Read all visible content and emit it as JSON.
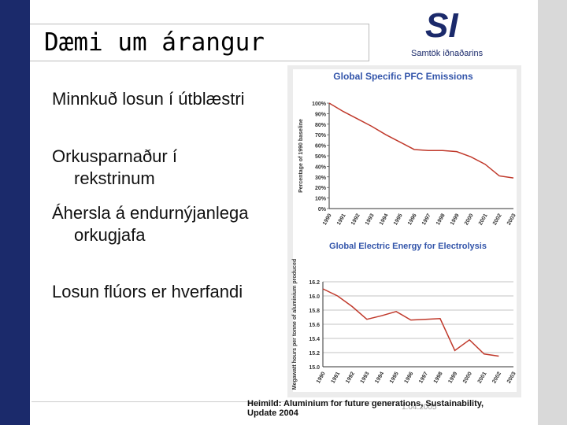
{
  "slide": {
    "title": "Dæmi um árangur",
    "logo": "SI",
    "logo_subtitle": "Samtök iðnaðarins",
    "bullets": [
      "Minnkuð losun í útblæstri",
      "Orkusparnaður í rekstrinum",
      "Áhersla á endurnýjanlega orkugjafa",
      "Losun flúors er hverfandi"
    ],
    "source": "Heimild: Aluminium for future generations, Sustainability, Update 2004",
    "date": "1.04.2005"
  },
  "chart_data": [
    {
      "type": "line",
      "title": "Global Specific PFC Emissions",
      "y_label": "Percentage of 1990 baseline",
      "color": "#c0392b",
      "categories": [
        "1990",
        "1991",
        "1992",
        "1993",
        "1994",
        "1995",
        "1996",
        "1997",
        "1998",
        "1999",
        "2000",
        "2001",
        "2002",
        "2003"
      ],
      "values": [
        100,
        92,
        85,
        78,
        70,
        63,
        56,
        55,
        55,
        54,
        49,
        42,
        31,
        29
      ],
      "ylim": [
        0,
        100
      ],
      "yticks": [
        {
          "value": 0,
          "label": "0%"
        },
        {
          "value": 10,
          "label": "10%"
        },
        {
          "value": 20,
          "label": "20%"
        },
        {
          "value": 30,
          "label": "30%"
        },
        {
          "value": 40,
          "label": "40%"
        },
        {
          "value": 50,
          "label": "50%"
        },
        {
          "value": 60,
          "label": "60%"
        },
        {
          "value": 70,
          "label": "70%"
        },
        {
          "value": 80,
          "label": "80%"
        },
        {
          "value": 90,
          "label": "90%"
        },
        {
          "value": 100,
          "label": "100%"
        }
      ]
    },
    {
      "type": "line",
      "title": "Global Electric Energy for Electrolysis",
      "y_label": "Megawatt hours per tonne of aluminium produced",
      "color": "#c0392b",
      "categories": [
        "1990",
        "1991",
        "1992",
        "1993",
        "1994",
        "1995",
        "1996",
        "1997",
        "1998",
        "1999",
        "2000",
        "2001",
        "2002",
        "2003"
      ],
      "values": [
        16.1,
        16.0,
        15.85,
        15.67,
        15.72,
        15.78,
        15.66,
        15.67,
        15.68,
        15.23,
        15.38,
        15.18,
        15.15,
        null
      ],
      "ylim": [
        15,
        16.2
      ],
      "yticks": [
        {
          "value": 15,
          "label": "15.0"
        },
        15.2,
        15.4,
        15.6,
        15.8,
        {
          "value": 16,
          "label": "16.0"
        },
        16.2
      ],
      "grid": true
    }
  ]
}
